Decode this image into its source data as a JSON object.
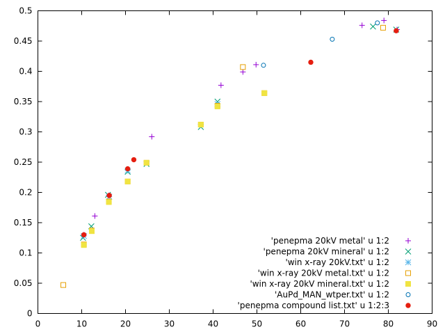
{
  "chart_data": {
    "type": "scatter",
    "xlim": [
      0,
      90
    ],
    "ylim": [
      0,
      0.5
    ],
    "x_ticks": [
      0,
      10,
      20,
      30,
      40,
      50,
      60,
      70,
      80,
      90
    ],
    "x_tick_labels": [
      "0",
      "10",
      "20",
      "30",
      "40",
      "50",
      "60",
      "70",
      "80",
      "90"
    ],
    "y_ticks": [
      0,
      0.05,
      0.1,
      0.15,
      0.2,
      0.25,
      0.3,
      0.35,
      0.4,
      0.45,
      0.5
    ],
    "y_tick_labels": [
      "0",
      "0.05",
      "0.1",
      "0.15",
      "0.2",
      "0.25",
      "0.3",
      "0.35",
      "0.4",
      "0.45",
      "0.5"
    ],
    "grid": false,
    "legend_position": "bottom-right",
    "series": [
      {
        "name": "'penepma 20kV metal' u 1:2",
        "marker": "plus",
        "color": "#9400d3",
        "points": [
          [
            10.5,
            0.13
          ],
          [
            13.0,
            0.161
          ],
          [
            16.2,
            0.195
          ],
          [
            20.5,
            0.238
          ],
          [
            26.0,
            0.292
          ],
          [
            41.8,
            0.377
          ],
          [
            46.8,
            0.399
          ],
          [
            49.8,
            0.411
          ],
          [
            74.0,
            0.476
          ],
          [
            79.0,
            0.484
          ],
          [
            82.0,
            0.469
          ]
        ]
      },
      {
        "name": "'penepma 20kV mineral' u 1:2",
        "marker": "cross",
        "color": "#009e73",
        "points": [
          [
            10.3,
            0.125
          ],
          [
            12.2,
            0.144
          ],
          [
            16.0,
            0.196
          ],
          [
            20.5,
            0.234
          ],
          [
            24.8,
            0.247
          ],
          [
            37.2,
            0.308
          ],
          [
            41.0,
            0.35
          ],
          [
            76.5,
            0.474
          ],
          [
            81.8,
            0.469
          ]
        ]
      },
      {
        "name": "'win x-ray 20kV.txt' u 1:2",
        "marker": "star",
        "color": "#56b4e9",
        "points": [
          [
            10.5,
            0.128
          ],
          [
            16.3,
            0.193
          ],
          [
            20.5,
            0.236
          ],
          [
            41.0,
            0.346
          ]
        ]
      },
      {
        "name": "'win x-ray 20kV metal.txt' u 1:2",
        "marker": "open-square",
        "color": "#e69f00",
        "points": [
          [
            5.8,
            0.047
          ],
          [
            10.5,
            0.114
          ],
          [
            12.3,
            0.137
          ],
          [
            16.2,
            0.185
          ],
          [
            20.5,
            0.218
          ],
          [
            24.8,
            0.249
          ],
          [
            37.2,
            0.312
          ],
          [
            41.0,
            0.343
          ],
          [
            46.8,
            0.407
          ],
          [
            51.7,
            0.364
          ],
          [
            78.8,
            0.472
          ]
        ]
      },
      {
        "name": "'win x-ray 20kV mineral.txt' u 1:2",
        "marker": "filled-square",
        "color": "#f0e442",
        "points": [
          [
            10.5,
            0.113
          ],
          [
            12.3,
            0.136
          ],
          [
            16.2,
            0.184
          ],
          [
            20.5,
            0.218
          ],
          [
            24.8,
            0.249
          ],
          [
            37.2,
            0.312
          ],
          [
            41.0,
            0.342
          ],
          [
            51.7,
            0.364
          ]
        ]
      },
      {
        "name": "'AuPd_MAN_wtper.txt' u 1:2",
        "marker": "open-circle",
        "color": "#0072b2",
        "points": [
          [
            51.5,
            0.41
          ],
          [
            67.2,
            0.453
          ],
          [
            77.5,
            0.48
          ]
        ]
      },
      {
        "name": "'penepma compound list.txt' u 1:2:3",
        "marker": "filled-circle",
        "color": "#e51e10",
        "points": [
          [
            10.5,
            0.13
          ],
          [
            16.3,
            0.195
          ],
          [
            20.5,
            0.239
          ],
          [
            21.9,
            0.254
          ],
          [
            62.3,
            0.415
          ],
          [
            81.8,
            0.467
          ]
        ]
      }
    ]
  }
}
